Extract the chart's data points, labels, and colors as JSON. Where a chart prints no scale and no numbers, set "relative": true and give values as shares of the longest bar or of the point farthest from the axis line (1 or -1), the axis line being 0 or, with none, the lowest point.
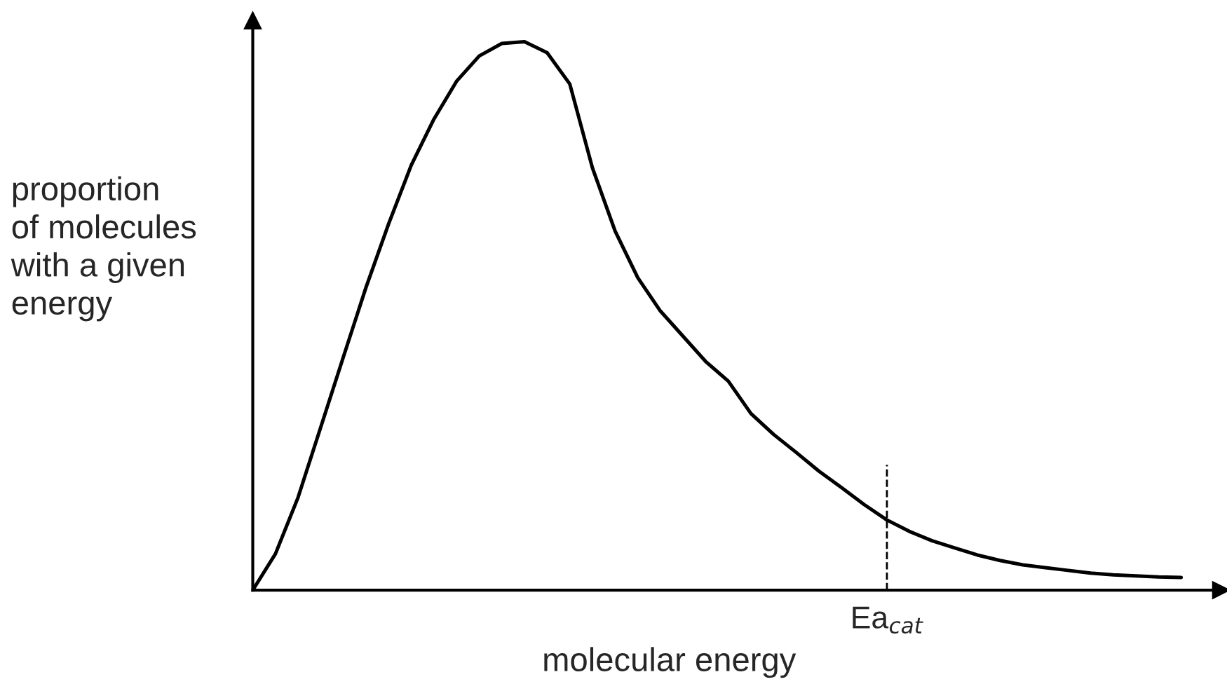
{
  "chart_data": {
    "type": "line",
    "relative": true,
    "xlabel": "molecular energy",
    "ylabel": "proportion\nof molecules\nwith a given\nenergy",
    "categories": [
      null,
      null,
      null,
      null,
      null,
      null,
      null,
      null,
      null,
      null,
      null,
      null,
      null,
      null,
      null,
      null,
      null,
      null,
      null,
      null,
      null,
      null,
      null,
      null,
      null,
      null,
      null,
      null,
      null,
      null,
      null,
      null,
      null,
      null,
      null,
      null,
      null,
      null,
      null,
      null,
      null,
      null
    ],
    "series": [
      {
        "color": "#000000",
        "values": [
          0,
          0.066,
          0.169,
          0.297,
          0.425,
          0.552,
          0.668,
          0.775,
          0.859,
          0.928,
          0.974,
          0.997,
          1,
          0.98,
          0.923,
          0.77,
          0.655,
          0.57,
          0.509,
          0.463,
          0.417,
          0.381,
          0.322,
          0.284,
          0.251,
          0.217,
          0.187,
          0.156,
          0.128,
          0.107,
          0.09,
          0.077,
          0.064,
          0.054,
          0.046,
          0.041,
          0.036,
          0.031,
          0.028,
          0.026,
          0.024,
          0.023
        ]
      }
    ],
    "annotations": [
      "Ea$_{cat}$"
    ],
    "legend": false,
    "marker": "none",
    "line_style": "solid"
  }
}
